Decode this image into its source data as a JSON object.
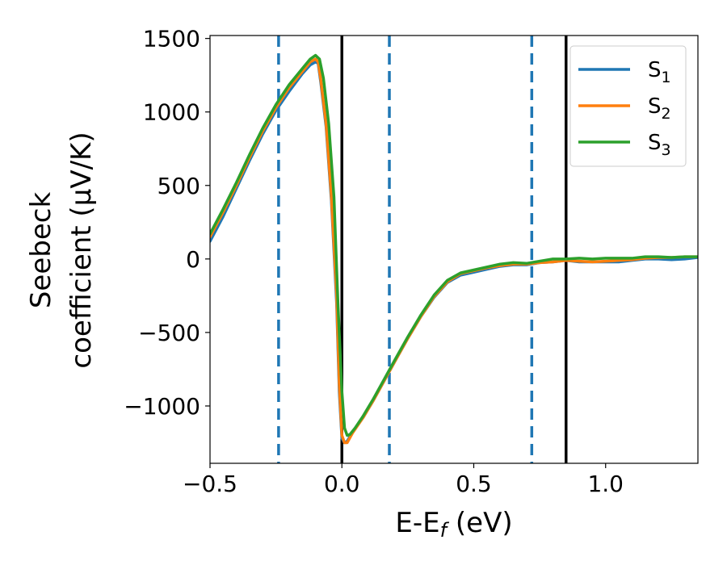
{
  "chart_data": {
    "type": "line",
    "title": "",
    "xlabel": "E-E_f (eV)",
    "ylabel_line1": "Seebeck",
    "ylabel_line2": "coefficient  (μV/K)",
    "xlim": [
      -0.5,
      1.35
    ],
    "ylim": [
      -1390,
      1520
    ],
    "xticks": [
      -0.5,
      0.0,
      0.5,
      1.0
    ],
    "xtick_labels": [
      "−0.5",
      "0.0",
      "0.5",
      "1.0"
    ],
    "yticks": [
      -1000,
      -500,
      0,
      500,
      1000,
      1500
    ],
    "ytick_labels": [
      "−1000",
      "−500",
      "0",
      "500",
      "1000",
      "1500"
    ],
    "legend_position": "top-right",
    "grid": false,
    "vertical_lines": [
      {
        "x": -0.24,
        "style": "dashed",
        "color": "#1f77b4"
      },
      {
        "x": 0.0,
        "style": "solid",
        "color": "#000000"
      },
      {
        "x": 0.18,
        "style": "dashed",
        "color": "#1f77b4"
      },
      {
        "x": 0.72,
        "style": "dashed",
        "color": "#1f77b4"
      },
      {
        "x": 0.85,
        "style": "solid",
        "color": "#000000"
      }
    ],
    "series": [
      {
        "name": "S",
        "subscript": "1",
        "color": "#1f77b4",
        "points": [
          [
            -0.5,
            120
          ],
          [
            -0.45,
            290
          ],
          [
            -0.4,
            480
          ],
          [
            -0.35,
            670
          ],
          [
            -0.3,
            850
          ],
          [
            -0.25,
            1010
          ],
          [
            -0.2,
            1140
          ],
          [
            -0.15,
            1260
          ],
          [
            -0.12,
            1320
          ],
          [
            -0.1,
            1340
          ],
          [
            -0.09,
            1330
          ],
          [
            -0.08,
            1200
          ],
          [
            -0.06,
            900
          ],
          [
            -0.04,
            400
          ],
          [
            -0.02,
            -300
          ],
          [
            -0.01,
            -900
          ],
          [
            0.0,
            -1220
          ],
          [
            0.01,
            -1250
          ],
          [
            0.02,
            -1240
          ],
          [
            0.04,
            -1180
          ],
          [
            0.08,
            -1080
          ],
          [
            0.12,
            -960
          ],
          [
            0.16,
            -830
          ],
          [
            0.2,
            -700
          ],
          [
            0.25,
            -540
          ],
          [
            0.3,
            -390
          ],
          [
            0.35,
            -260
          ],
          [
            0.4,
            -160
          ],
          [
            0.45,
            -110
          ],
          [
            0.5,
            -90
          ],
          [
            0.55,
            -70
          ],
          [
            0.6,
            -50
          ],
          [
            0.65,
            -40
          ],
          [
            0.7,
            -40
          ],
          [
            0.75,
            -25
          ],
          [
            0.8,
            -20
          ],
          [
            0.85,
            -10
          ],
          [
            0.9,
            -20
          ],
          [
            0.95,
            -20
          ],
          [
            1.0,
            -20
          ],
          [
            1.05,
            -20
          ],
          [
            1.1,
            -10
          ],
          [
            1.15,
            0
          ],
          [
            1.2,
            0
          ],
          [
            1.25,
            -5
          ],
          [
            1.3,
            0
          ],
          [
            1.35,
            10
          ]
        ]
      },
      {
        "name": "S",
        "subscript": "2",
        "color": "#ff7f0e",
        "points": [
          [
            -0.5,
            150
          ],
          [
            -0.45,
            320
          ],
          [
            -0.4,
            500
          ],
          [
            -0.35,
            690
          ],
          [
            -0.3,
            870
          ],
          [
            -0.25,
            1030
          ],
          [
            -0.2,
            1165
          ],
          [
            -0.15,
            1275
          ],
          [
            -0.12,
            1340
          ],
          [
            -0.1,
            1360
          ],
          [
            -0.09,
            1340
          ],
          [
            -0.08,
            1220
          ],
          [
            -0.06,
            920
          ],
          [
            -0.04,
            430
          ],
          [
            -0.02,
            -250
          ],
          [
            -0.01,
            -850
          ],
          [
            0.0,
            -1200
          ],
          [
            0.01,
            -1250
          ],
          [
            0.02,
            -1250
          ],
          [
            0.04,
            -1185
          ],
          [
            0.08,
            -1080
          ],
          [
            0.12,
            -960
          ],
          [
            0.16,
            -830
          ],
          [
            0.2,
            -700
          ],
          [
            0.25,
            -540
          ],
          [
            0.3,
            -390
          ],
          [
            0.35,
            -255
          ],
          [
            0.4,
            -155
          ],
          [
            0.45,
            -100
          ],
          [
            0.5,
            -80
          ],
          [
            0.55,
            -60
          ],
          [
            0.6,
            -45
          ],
          [
            0.65,
            -35
          ],
          [
            0.7,
            -35
          ],
          [
            0.75,
            -25
          ],
          [
            0.8,
            -20
          ],
          [
            0.85,
            -10
          ],
          [
            0.9,
            -15
          ],
          [
            0.95,
            -20
          ],
          [
            1.0,
            -15
          ],
          [
            1.05,
            -10
          ],
          [
            1.1,
            -5
          ],
          [
            1.15,
            5
          ],
          [
            1.2,
            10
          ],
          [
            1.25,
            10
          ],
          [
            1.3,
            15
          ],
          [
            1.35,
            15
          ]
        ]
      },
      {
        "name": "S",
        "subscript": "3",
        "color": "#2ca02c",
        "points": [
          [
            -0.5,
            170
          ],
          [
            -0.45,
            340
          ],
          [
            -0.4,
            520
          ],
          [
            -0.35,
            710
          ],
          [
            -0.3,
            890
          ],
          [
            -0.25,
            1050
          ],
          [
            -0.2,
            1185
          ],
          [
            -0.15,
            1295
          ],
          [
            -0.12,
            1360
          ],
          [
            -0.1,
            1385
          ],
          [
            -0.085,
            1360
          ],
          [
            -0.07,
            1230
          ],
          [
            -0.05,
            920
          ],
          [
            -0.03,
            420
          ],
          [
            -0.015,
            -300
          ],
          [
            0.0,
            -900
          ],
          [
            0.01,
            -1150
          ],
          [
            0.02,
            -1200
          ],
          [
            0.03,
            -1195
          ],
          [
            0.05,
            -1150
          ],
          [
            0.08,
            -1070
          ],
          [
            0.12,
            -950
          ],
          [
            0.16,
            -820
          ],
          [
            0.2,
            -690
          ],
          [
            0.25,
            -530
          ],
          [
            0.3,
            -380
          ],
          [
            0.35,
            -245
          ],
          [
            0.4,
            -145
          ],
          [
            0.45,
            -95
          ],
          [
            0.5,
            -75
          ],
          [
            0.55,
            -55
          ],
          [
            0.6,
            -35
          ],
          [
            0.65,
            -25
          ],
          [
            0.7,
            -30
          ],
          [
            0.75,
            -15
          ],
          [
            0.8,
            0
          ],
          [
            0.85,
            0
          ],
          [
            0.9,
            5
          ],
          [
            0.95,
            0
          ],
          [
            1.0,
            5
          ],
          [
            1.05,
            5
          ],
          [
            1.1,
            5
          ],
          [
            1.15,
            15
          ],
          [
            1.2,
            15
          ],
          [
            1.25,
            10
          ],
          [
            1.3,
            15
          ],
          [
            1.35,
            15
          ]
        ]
      }
    ]
  }
}
